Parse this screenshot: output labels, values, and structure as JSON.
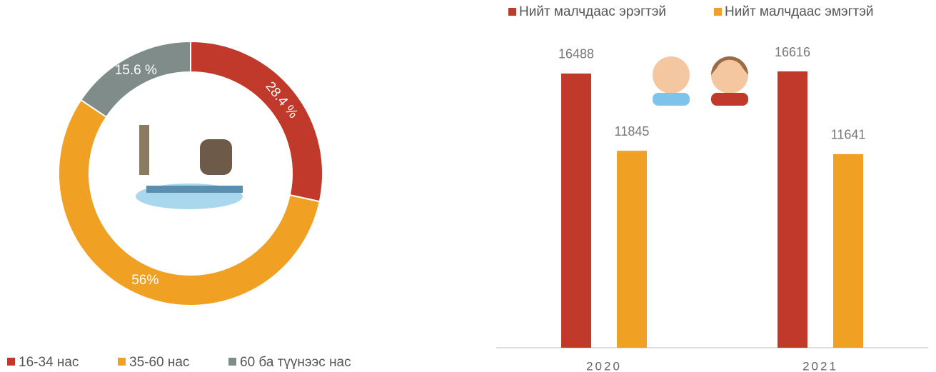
{
  "chart_data": [
    {
      "type": "pie",
      "categories": [
        "16-34 нас",
        "35-60 нас",
        "60 ба түүнээс нас"
      ],
      "values": [
        28.4,
        56,
        15.6
      ],
      "value_labels": [
        "28.4 %",
        "56%",
        "15.6 %"
      ],
      "colors": [
        "#c0392b",
        "#f0a023",
        "#7f8c89"
      ]
    },
    {
      "type": "bar",
      "categories": [
        "2020",
        "2021"
      ],
      "series": [
        {
          "name": "Нийт малчдаас эрэгтэй",
          "color": "#c0392b",
          "values": [
            16488,
            16616
          ]
        },
        {
          "name": "Нийт малчдаас эмэгтэй",
          "color": "#f0a023",
          "values": [
            11845,
            11641
          ]
        }
      ]
    }
  ]
}
